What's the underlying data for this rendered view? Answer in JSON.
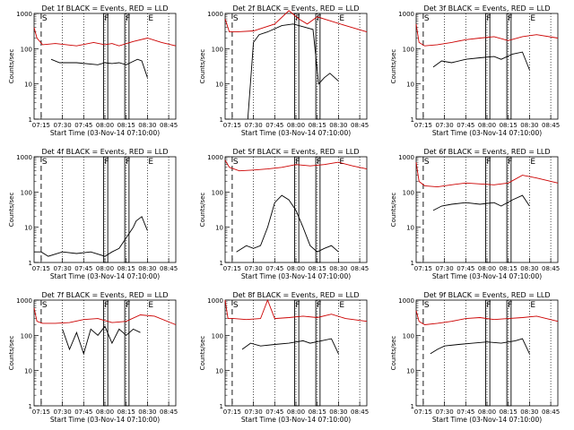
{
  "chart_data": {
    "type": "line",
    "layout": "3x3 grid of panels",
    "x_axis_label": "Start Time (03-Nov-14 07:10:00)",
    "x_ticks": [
      "07:15",
      "07:30",
      "07:45",
      "08:00",
      "08:15",
      "08:30",
      "08:45"
    ],
    "x_range": [
      "07:10",
      "08:50"
    ],
    "y_axis_label": "Counts/sec",
    "y_scale": "log",
    "y_range": [
      1,
      1000
    ],
    "y_ticks": [
      "1",
      "10",
      "100",
      "1000"
    ],
    "series_colors": {
      "events": "#000000",
      "lld": "#cc0000"
    },
    "markers": {
      "dashed_vertical": [
        "07:15"
      ],
      "dotted_vertical": [
        "07:30",
        "07:45",
        "08:00",
        "08:15",
        "08:30",
        "08:45"
      ],
      "solid_box_1": [
        "07:59",
        "08:02"
      ],
      "solid_box_2": [
        "08:14",
        "08:17"
      ]
    },
    "marker_letters": [
      "S",
      "F",
      "F",
      "E"
    ],
    "panels": [
      {
        "title": "Det 1f BLACK = Events, RED = LLD",
        "lld": {
          "t": [
            0,
            2,
            6,
            15,
            30,
            42,
            50,
            55,
            60,
            70,
            80,
            90,
            100
          ],
          "v": [
            400,
            200,
            130,
            140,
            120,
            150,
            130,
            140,
            120,
            160,
            200,
            150,
            120
          ]
        },
        "events": {
          "t": [
            12,
            18,
            30,
            45,
            50,
            55,
            60,
            65,
            68,
            73,
            76,
            80
          ],
          "v": [
            50,
            40,
            40,
            35,
            40,
            38,
            40,
            35,
            40,
            50,
            45,
            15
          ]
        }
      },
      {
        "title": "Det 2f BLACK = Events, RED = LLD",
        "lld": {
          "t": [
            0,
            3,
            8,
            20,
            35,
            45,
            52,
            58,
            65,
            75,
            85,
            100
          ],
          "v": [
            700,
            300,
            300,
            320,
            500,
            1200,
            700,
            500,
            800,
            600,
            450,
            300
          ]
        },
        "events": {
          "t": [
            16,
            20,
            24,
            30,
            40,
            48,
            55,
            62,
            66,
            70,
            74,
            80
          ],
          "v": [
            1,
            150,
            250,
            300,
            450,
            500,
            420,
            350,
            10,
            15,
            20,
            12
          ]
        }
      },
      {
        "title": "Det 3f BLACK = Events, RED = LLD",
        "lld": {
          "t": [
            0,
            2,
            6,
            15,
            25,
            35,
            45,
            55,
            65,
            75,
            85,
            100
          ],
          "v": [
            500,
            150,
            120,
            130,
            150,
            180,
            200,
            220,
            170,
            220,
            250,
            200
          ]
        },
        "events": {
          "t": [
            12,
            18,
            25,
            35,
            45,
            55,
            60,
            68,
            75,
            80
          ],
          "v": [
            30,
            45,
            40,
            50,
            55,
            60,
            50,
            70,
            80,
            25
          ]
        }
      },
      {
        "title": "Det 4f BLACK = Events, RED = LLD",
        "lld": {
          "t": [],
          "v": []
        },
        "events": {
          "t": [
            0,
            5,
            10,
            20,
            30,
            40,
            50,
            55,
            60,
            65,
            70,
            72,
            76,
            80
          ],
          "v": [
            2,
            2,
            1.5,
            2,
            1.8,
            2,
            1.5,
            2,
            2.5,
            5,
            10,
            15,
            20,
            8
          ]
        }
      },
      {
        "title": "Det 5f BLACK = Events, RED = LLD",
        "lld": {
          "t": [
            0,
            3,
            10,
            20,
            30,
            40,
            50,
            60,
            70,
            80,
            90,
            100
          ],
          "v": [
            800,
            500,
            400,
            420,
            450,
            500,
            600,
            550,
            600,
            700,
            550,
            450
          ]
        },
        "events": {
          "t": [
            8,
            15,
            20,
            25,
            30,
            35,
            40,
            45,
            50,
            55,
            60,
            65,
            70,
            75,
            80
          ],
          "v": [
            2,
            3,
            2.5,
            3,
            10,
            50,
            80,
            60,
            30,
            10,
            3,
            2,
            2.5,
            3,
            2
          ]
        }
      },
      {
        "title": "Det 6f BLACK = Events, RED = LLD",
        "lld": {
          "t": [
            0,
            2,
            6,
            15,
            25,
            35,
            45,
            55,
            65,
            75,
            85,
            100
          ],
          "v": [
            700,
            200,
            150,
            140,
            160,
            180,
            170,
            160,
            180,
            300,
            250,
            180
          ]
        },
        "events": {
          "t": [
            12,
            18,
            25,
            35,
            45,
            55,
            60,
            68,
            75,
            80
          ],
          "v": [
            30,
            40,
            45,
            50,
            45,
            50,
            40,
            60,
            80,
            40
          ]
        }
      },
      {
        "title": "Det 7f BLACK = Events, RED = LLD",
        "lld": {
          "t": [
            0,
            2,
            6,
            15,
            25,
            35,
            45,
            55,
            65,
            75,
            85,
            100
          ],
          "v": [
            600,
            250,
            220,
            220,
            230,
            280,
            300,
            230,
            250,
            380,
            350,
            200
          ]
        },
        "events": {
          "t": [
            20,
            25,
            30,
            35,
            40,
            45,
            50,
            55,
            60,
            65,
            70,
            75
          ],
          "v": [
            150,
            40,
            120,
            30,
            150,
            100,
            180,
            60,
            150,
            100,
            150,
            120
          ]
        }
      },
      {
        "title": "Det 8f BLACK = Events, RED = LLD",
        "lld": {
          "t": [
            0,
            2,
            6,
            15,
            25,
            30,
            35,
            45,
            55,
            65,
            75,
            85,
            100
          ],
          "v": [
            1000,
            300,
            300,
            280,
            300,
            1000,
            300,
            320,
            350,
            320,
            400,
            300,
            250
          ]
        },
        "events": {
          "t": [
            12,
            18,
            25,
            35,
            45,
            55,
            60,
            68,
            75,
            80
          ],
          "v": [
            40,
            60,
            50,
            55,
            60,
            70,
            60,
            70,
            80,
            30
          ]
        }
      },
      {
        "title": "Det 9f BLACK = Events, RED = LLD",
        "lld": {
          "t": [
            0,
            2,
            6,
            15,
            25,
            35,
            45,
            55,
            65,
            75,
            85,
            100
          ],
          "v": [
            500,
            250,
            200,
            220,
            250,
            300,
            320,
            280,
            300,
            320,
            350,
            250
          ]
        },
        "events": {
          "t": [
            10,
            15,
            20,
            30,
            40,
            50,
            60,
            70,
            75,
            80
          ],
          "v": [
            30,
            40,
            50,
            55,
            60,
            65,
            60,
            70,
            80,
            30
          ]
        }
      }
    ]
  }
}
